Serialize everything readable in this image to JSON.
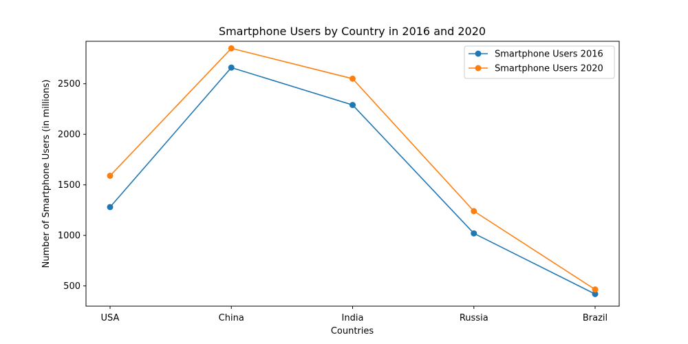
{
  "chart_data": {
    "type": "line",
    "title": "Smartphone Users by Country in 2016 and 2020",
    "xlabel": "Countries",
    "ylabel": "Number of Smartphone Users (in millions)",
    "categories": [
      "USA",
      "China",
      "India",
      "Russia",
      "Brazil"
    ],
    "series": [
      {
        "name": "Smartphone Users 2016",
        "values": [
          1280,
          2660,
          2290,
          1020,
          420
        ],
        "color": "#1f77b4"
      },
      {
        "name": "Smartphone Users 2020",
        "values": [
          1590,
          2850,
          2550,
          1240,
          465
        ],
        "color": "#ff7f0e"
      }
    ],
    "ylim": [
      300,
      2920
    ],
    "yticks": [
      500,
      1000,
      1500,
      2000,
      2500
    ],
    "grid": false,
    "legend_position": "top-right"
  }
}
